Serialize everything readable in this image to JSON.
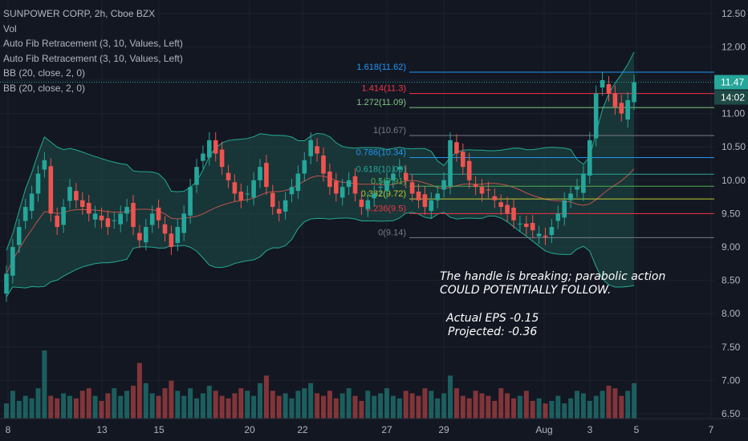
{
  "legend": {
    "symbol": "SUNPOWER CORP, 2h, Cboe BZX",
    "vol": "Vol",
    "fib1": "Auto Fib Retracement (3, 10, Values, Left)",
    "fib2": "Auto Fib Retracement (3, 10, Values, Left)",
    "bb1": "BB (20, close, 2, 0)",
    "bb2": "BB (20, close, 2, 0)"
  },
  "annotation": {
    "line1": "The handle is breaking; parabolic action",
    "line2": "COULD POTENTIALLY FOLLOW.",
    "line3": "Actual EPS -0.15",
    "line4": "Projected: -0.36"
  },
  "colors": {
    "background": "#131722",
    "up": "#26a69a",
    "down": "#ef5350",
    "bb_fill": "#1f5a52",
    "bb_line": "#22ab94",
    "basis": "#c2524b"
  },
  "chart_data": {
    "type": "candlestick",
    "y_ticks": [
      "12.50",
      "12.00",
      "11.50",
      "11.00",
      "10.50",
      "10.00",
      "9.50",
      "9.00",
      "8.50",
      "8.00",
      "7.50",
      "7.00",
      "6.50"
    ],
    "ylim": [
      6.5,
      12.6
    ],
    "x_ticks": [
      "8",
      "13",
      "15",
      "20",
      "22",
      "27",
      "29",
      "Aug",
      "3",
      "5",
      "7"
    ],
    "price_label": "11.47",
    "countdown_label": "14:02",
    "fib_levels": [
      {
        "ratio": "1.618",
        "price": 11.62,
        "label": "1.618(11.62)",
        "color": "#2196f3"
      },
      {
        "ratio": "1.414",
        "price": 11.3,
        "label": "1.414(11.3)",
        "color": "#f23645"
      },
      {
        "ratio": "1.272",
        "price": 11.09,
        "label": "1.272(11.09)",
        "color": "#81c784"
      },
      {
        "ratio": "1",
        "price": 10.67,
        "label": "1(10.67)",
        "color": "#787b86"
      },
      {
        "ratio": "0.786",
        "price": 10.34,
        "label": "0.786(10.34)",
        "color": "#2196f3"
      },
      {
        "ratio": "0.618",
        "price": 10.09,
        "label": "0.618(10.09)",
        "color": "#26a69a"
      },
      {
        "ratio": "0.5",
        "price": 9.91,
        "label": "0.5(9.91)",
        "color": "#4caf50"
      },
      {
        "ratio": "0.382",
        "price": 9.72,
        "label": "0.382(9.72)",
        "color": "#c0ca33"
      },
      {
        "ratio": "0.236",
        "price": 9.5,
        "label": "0.236(9.5)",
        "color": "#f23645"
      },
      {
        "ratio": "0",
        "price": 9.14,
        "label": "0(9.14)",
        "color": "#787b86"
      }
    ],
    "closes": [
      8.6,
      9.0,
      9.3,
      9.6,
      9.8,
      10.1,
      10.3,
      9.5,
      9.3,
      9.6,
      9.9,
      9.7,
      9.6,
      9.5,
      9.5,
      9.4,
      9.3,
      9.4,
      9.5,
      9.6,
      9.3,
      9.1,
      9.3,
      9.5,
      9.4,
      9.2,
      9.0,
      9.3,
      9.5,
      9.9,
      10.2,
      10.4,
      10.6,
      10.4,
      10.2,
      10.0,
      9.8,
      9.7,
      9.8,
      10.0,
      10.2,
      9.9,
      9.6,
      9.5,
      9.7,
      9.9,
      10.1,
      10.3,
      10.6,
      10.4,
      10.1,
      9.9,
      9.8,
      9.9,
      10.0,
      9.8,
      9.6,
      9.7,
      9.8,
      9.9,
      10.0,
      10.1,
      10.2,
      10.0,
      9.8,
      9.7,
      9.6,
      9.7,
      9.8,
      10.0,
      10.6,
      10.4,
      10.2,
      10.0,
      9.9,
      9.8,
      9.85,
      9.7,
      9.6,
      9.5,
      9.4,
      9.35,
      9.3,
      9.25,
      9.2,
      9.15,
      9.3,
      9.5,
      9.7,
      9.8,
      9.9,
      10.1,
      10.6,
      11.3,
      11.5,
      11.3,
      11.1,
      11.0,
      11.2,
      11.47
    ],
    "volumes": [
      30,
      55,
      35,
      45,
      40,
      60,
      135,
      45,
      40,
      50,
      45,
      40,
      55,
      60,
      45,
      35,
      50,
      60,
      45,
      55,
      65,
      110,
      70,
      50,
      45,
      60,
      75,
      55,
      45,
      60,
      40,
      50,
      65,
      55,
      45,
      40,
      50,
      60,
      55,
      45,
      70,
      85,
      55,
      45,
      50,
      40,
      55,
      60,
      70,
      50,
      45,
      55,
      40,
      50,
      60,
      45,
      35,
      55,
      45,
      50,
      60,
      45,
      40,
      55,
      50,
      45,
      60,
      55,
      40,
      50,
      85,
      60,
      45,
      40,
      55,
      50,
      45,
      35,
      60,
      50,
      40,
      45,
      55,
      35,
      40,
      30,
      35,
      45,
      30,
      40,
      55,
      50,
      35,
      45,
      55,
      65,
      60,
      45,
      55,
      70
    ]
  }
}
